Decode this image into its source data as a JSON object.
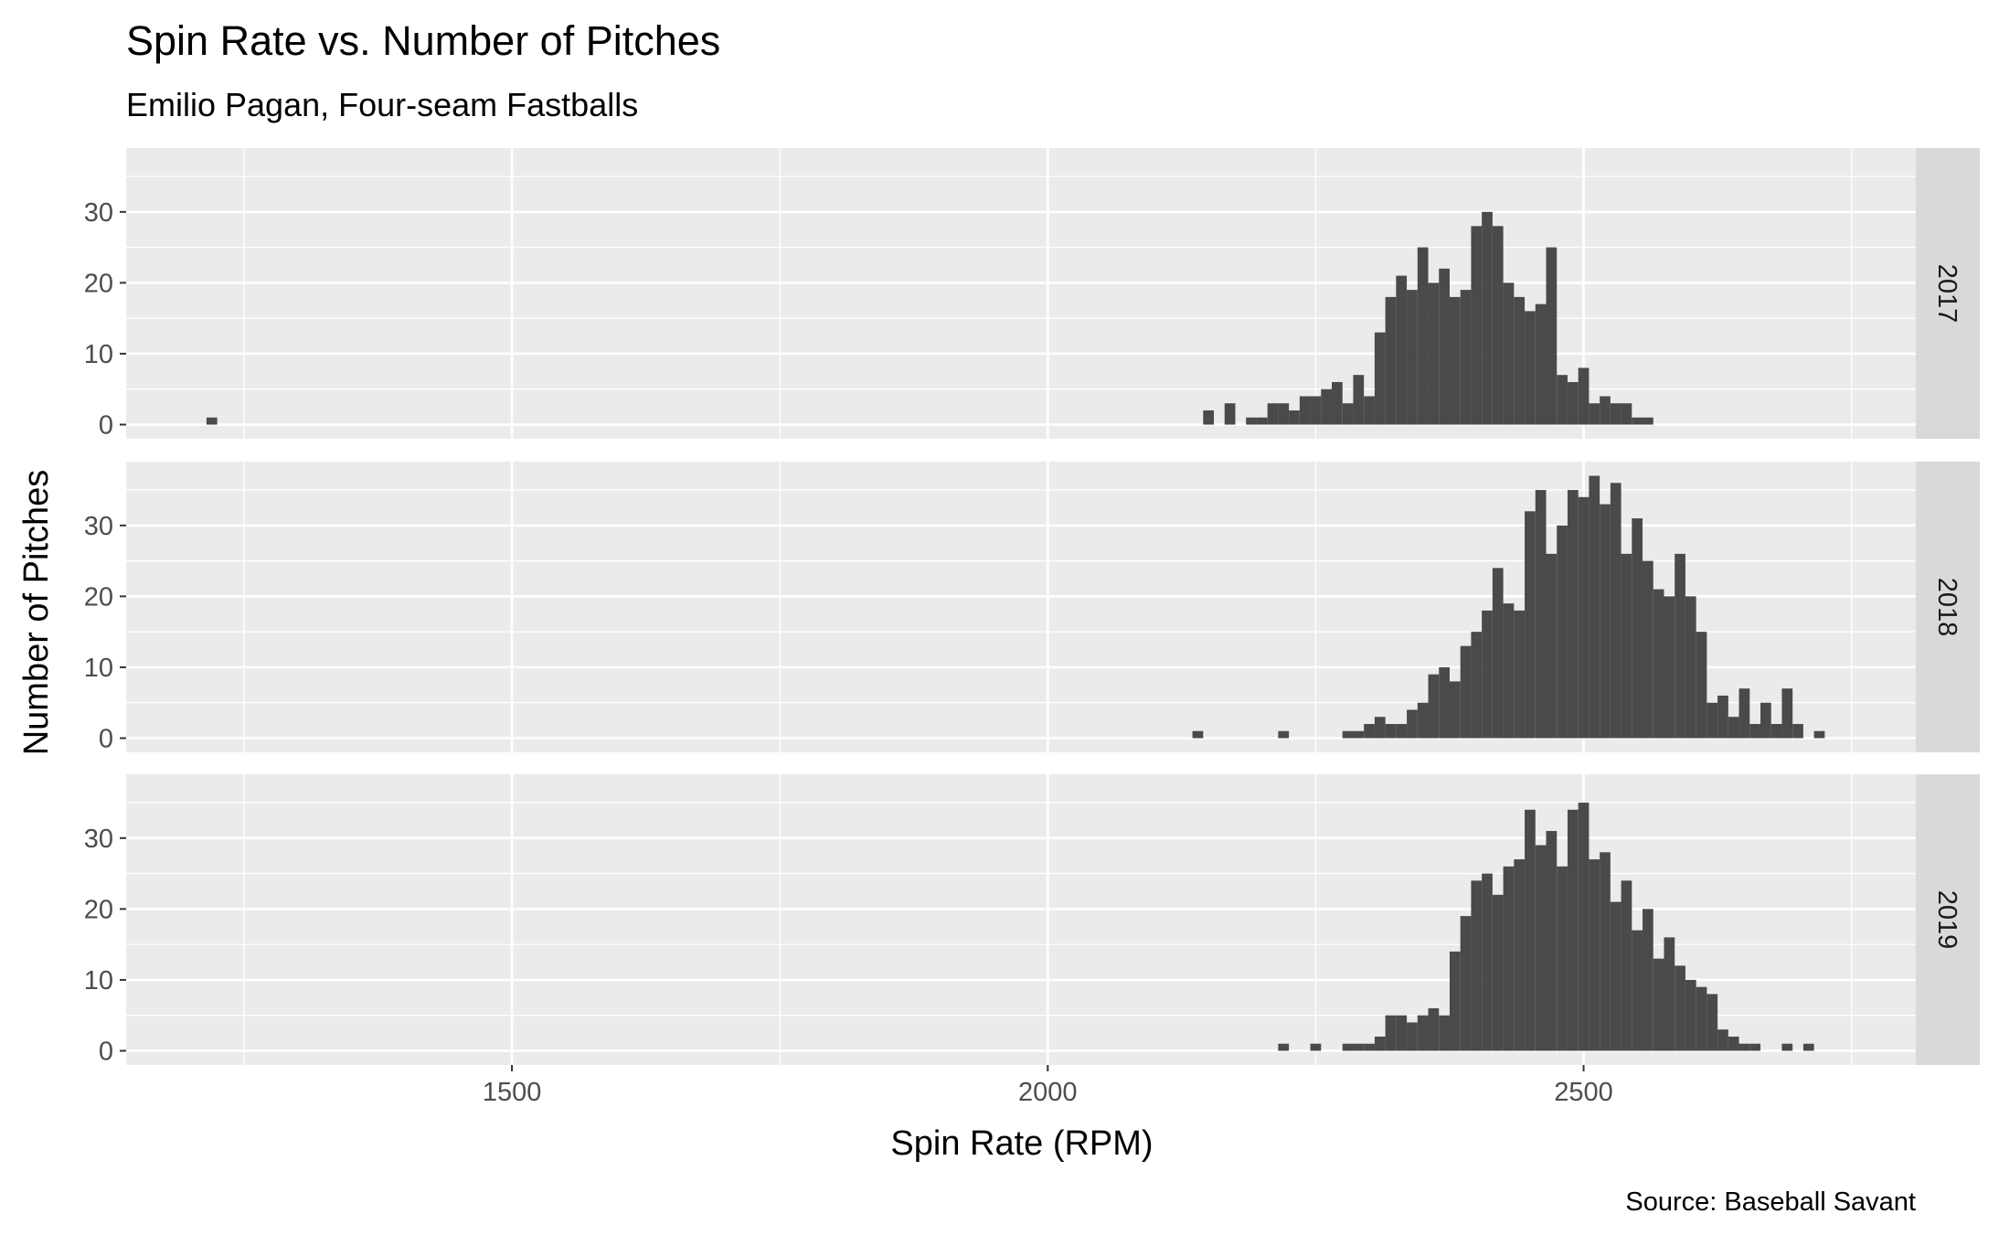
{
  "chart_data": {
    "type": "bar",
    "title": "Spin Rate vs. Number of Pitches",
    "subtitle": "Emilio Pagan, Four-seam Fastballs",
    "xlabel": "Spin Rate (RPM)",
    "ylabel": "Number of Pitches",
    "caption": "Source: Baseball Savant",
    "xlim": [
      1140,
      2810
    ],
    "ylim": [
      -2,
      39
    ],
    "xticks": [
      1500,
      2000,
      2500
    ],
    "yticks": [
      0,
      10,
      20,
      30
    ],
    "bin_width": 10,
    "grid": true,
    "facets": [
      "2017",
      "2018",
      "2019"
    ],
    "series": [
      {
        "name": "2017",
        "x": [
          1220,
          2150,
          2170,
          2190,
          2200,
          2210,
          2220,
          2230,
          2240,
          2250,
          2260,
          2270,
          2280,
          2290,
          2300,
          2310,
          2320,
          2330,
          2340,
          2350,
          2360,
          2370,
          2380,
          2390,
          2400,
          2410,
          2420,
          2430,
          2440,
          2450,
          2460,
          2470,
          2480,
          2490,
          2500,
          2510,
          2520,
          2530,
          2540,
          2550,
          2560,
          2570,
          2580,
          2590
        ],
        "values": [
          1,
          2,
          3,
          1,
          1,
          3,
          3,
          2,
          4,
          4,
          5,
          6,
          3,
          7,
          4,
          13,
          18,
          21,
          19,
          25,
          20,
          22,
          18,
          19,
          28,
          30,
          28,
          20,
          18,
          16,
          17,
          25,
          7,
          6,
          8,
          3,
          4,
          3,
          3,
          1,
          1,
          0,
          0,
          0
        ]
      },
      {
        "name": "2018",
        "x": [
          2140,
          2220,
          2280,
          2290,
          2300,
          2310,
          2320,
          2330,
          2340,
          2350,
          2360,
          2370,
          2380,
          2390,
          2400,
          2410,
          2420,
          2430,
          2440,
          2450,
          2460,
          2470,
          2480,
          2490,
          2500,
          2510,
          2520,
          2530,
          2540,
          2550,
          2560,
          2570,
          2580,
          2590,
          2600,
          2610,
          2620,
          2630,
          2640,
          2650,
          2660,
          2670,
          2680,
          2690,
          2700,
          2720
        ],
        "values": [
          1,
          1,
          1,
          1,
          2,
          3,
          2,
          2,
          4,
          5,
          9,
          10,
          8,
          13,
          15,
          18,
          24,
          19,
          18,
          32,
          35,
          26,
          30,
          35,
          34,
          37,
          33,
          36,
          26,
          31,
          25,
          21,
          20,
          26,
          20,
          15,
          5,
          6,
          3,
          7,
          2,
          5,
          2,
          7,
          2,
          1
        ]
      },
      {
        "name": "2019",
        "x": [
          2220,
          2250,
          2280,
          2290,
          2300,
          2310,
          2320,
          2330,
          2340,
          2350,
          2360,
          2370,
          2380,
          2390,
          2400,
          2410,
          2420,
          2430,
          2440,
          2450,
          2460,
          2470,
          2480,
          2490,
          2500,
          2510,
          2520,
          2530,
          2540,
          2550,
          2560,
          2570,
          2580,
          2590,
          2600,
          2610,
          2620,
          2630,
          2640,
          2650,
          2660,
          2670,
          2690,
          2710
        ],
        "values": [
          1,
          1,
          1,
          1,
          1,
          2,
          5,
          5,
          4,
          5,
          6,
          5,
          14,
          19,
          24,
          25,
          22,
          26,
          27,
          34,
          29,
          31,
          26,
          34,
          35,
          27,
          28,
          21,
          24,
          17,
          20,
          13,
          16,
          12,
          10,
          9,
          8,
          3,
          2,
          1,
          1,
          0,
          1,
          1
        ]
      }
    ]
  }
}
